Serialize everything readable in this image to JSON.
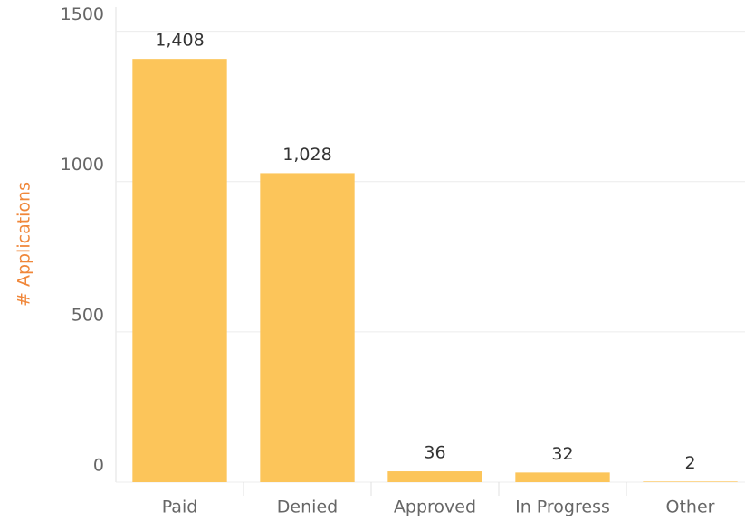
{
  "chart_data": {
    "type": "bar",
    "y_label": "# Applications",
    "categories": [
      "Paid",
      "Denied",
      "Approved",
      "In Progress",
      "Other"
    ],
    "values": [
      1408,
      1028,
      36,
      32,
      2
    ],
    "value_labels": [
      "1,408",
      "1,028",
      "36",
      "32",
      "2"
    ],
    "color": "#fcc55a",
    "ylim": [
      0,
      1580
    ],
    "yticks": [
      0,
      500,
      1000,
      1500
    ],
    "grid": true
  }
}
